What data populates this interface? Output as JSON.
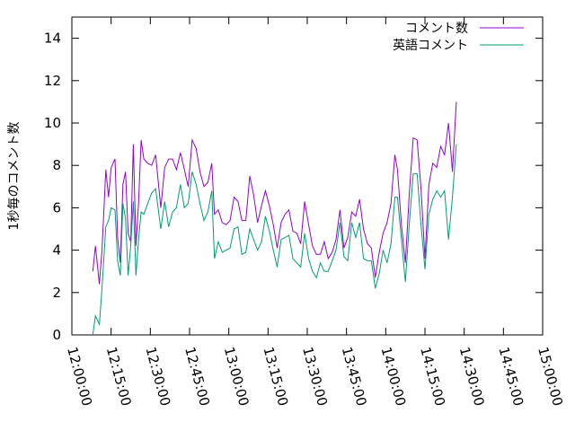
{
  "chart_data": {
    "type": "line",
    "title": "",
    "xlabel": "",
    "ylabel": "1秒毎のコメント数",
    "x_axis_type": "time",
    "xlim": [
      "12:00:00",
      "15:00:00"
    ],
    "ylim": [
      0,
      15
    ],
    "yticks": [
      0,
      2,
      4,
      6,
      8,
      10,
      12,
      14
    ],
    "xticks": [
      "12:00:00",
      "12:15:00",
      "12:30:00",
      "12:45:00",
      "13:00:00",
      "13:15:00",
      "13:30:00",
      "13:45:00",
      "14:00:00",
      "14:15:00",
      "14:30:00",
      "14:45:00",
      "15:00:00"
    ],
    "grid": false,
    "legend_position": "top-right",
    "series": [
      {
        "name": "コメント数",
        "color": "#9400d3",
        "points": [
          [
            "12:08:00",
            3.0
          ],
          [
            "12:09:00",
            4.2
          ],
          [
            "12:10:30",
            2.4
          ],
          [
            "12:11:30",
            4.0
          ],
          [
            "12:13:00",
            7.8
          ],
          [
            "12:14:00",
            6.5
          ],
          [
            "12:15:00",
            7.9
          ],
          [
            "12:16:30",
            8.3
          ],
          [
            "12:17:30",
            4.6
          ],
          [
            "12:18:30",
            3.4
          ],
          [
            "12:19:30",
            7.1
          ],
          [
            "12:20:30",
            7.7
          ],
          [
            "12:21:30",
            4.8
          ],
          [
            "12:22:30",
            4.4
          ],
          [
            "12:23:30",
            9.0
          ],
          [
            "12:24:30",
            4.2
          ],
          [
            "12:25:30",
            6.2
          ],
          [
            "12:26:30",
            9.2
          ],
          [
            "12:27:30",
            8.3
          ],
          [
            "12:29:00",
            8.1
          ],
          [
            "12:30:30",
            8.0
          ],
          [
            "12:32:00",
            8.5
          ],
          [
            "12:34:00",
            6.0
          ],
          [
            "12:35:30",
            7.9
          ],
          [
            "12:37:00",
            8.3
          ],
          [
            "12:38:30",
            8.3
          ],
          [
            "12:40:00",
            7.8
          ],
          [
            "12:41:30",
            8.6
          ],
          [
            "12:43:00",
            7.8
          ],
          [
            "12:44:30",
            7.0
          ],
          [
            "12:46:00",
            9.2
          ],
          [
            "12:47:30",
            8.8
          ],
          [
            "12:49:00",
            7.7
          ],
          [
            "12:50:30",
            7.0
          ],
          [
            "12:52:00",
            7.2
          ],
          [
            "12:53:30",
            8.1
          ],
          [
            "12:54:30",
            5.7
          ],
          [
            "12:56:00",
            5.9
          ],
          [
            "12:57:30",
            5.3
          ],
          [
            "12:59:00",
            5.2
          ],
          [
            "13:00:30",
            5.4
          ],
          [
            "13:02:00",
            6.5
          ],
          [
            "13:03:30",
            6.3
          ],
          [
            "13:05:00",
            5.4
          ],
          [
            "13:06:30",
            5.4
          ],
          [
            "13:08:00",
            7.5
          ],
          [
            "13:09:30",
            6.6
          ],
          [
            "13:11:00",
            5.3
          ],
          [
            "13:12:30",
            6.1
          ],
          [
            "13:14:00",
            6.8
          ],
          [
            "13:15:30",
            6.1
          ],
          [
            "13:17:00",
            5.2
          ],
          [
            "13:18:30",
            4.1
          ],
          [
            "13:20:00",
            5.3
          ],
          [
            "13:21:30",
            5.7
          ],
          [
            "13:23:00",
            5.9
          ],
          [
            "13:24:30",
            4.9
          ],
          [
            "13:26:00",
            4.8
          ],
          [
            "13:27:30",
            4.3
          ],
          [
            "13:29:00",
            6.3
          ],
          [
            "13:30:30",
            5.2
          ],
          [
            "13:32:00",
            4.2
          ],
          [
            "13:33:30",
            3.8
          ],
          [
            "13:35:00",
            3.8
          ],
          [
            "13:36:30",
            4.4
          ],
          [
            "13:38:00",
            3.6
          ],
          [
            "13:39:30",
            3.9
          ],
          [
            "13:41:00",
            4.5
          ],
          [
            "13:42:30",
            5.9
          ],
          [
            "13:44:00",
            4.1
          ],
          [
            "13:45:30",
            4.6
          ],
          [
            "13:47:00",
            5.8
          ],
          [
            "13:48:30",
            5.6
          ],
          [
            "13:50:00",
            6.4
          ],
          [
            "13:51:30",
            5.0
          ],
          [
            "13:53:00",
            4.3
          ],
          [
            "13:54:30",
            4.1
          ],
          [
            "13:56:00",
            2.7
          ],
          [
            "13:57:30",
            3.9
          ],
          [
            "13:59:00",
            4.8
          ],
          [
            "14:00:30",
            5.3
          ],
          [
            "14:02:00",
            6.2
          ],
          [
            "14:03:30",
            8.5
          ],
          [
            "14:04:30",
            7.8
          ],
          [
            "14:06:00",
            5.2
          ],
          [
            "14:07:30",
            3.4
          ],
          [
            "14:09:00",
            6.6
          ],
          [
            "14:10:30",
            9.3
          ],
          [
            "14:12:00",
            9.2
          ],
          [
            "14:13:30",
            6.9
          ],
          [
            "14:15:00",
            3.6
          ],
          [
            "14:16:30",
            7.1
          ],
          [
            "14:18:00",
            8.1
          ],
          [
            "14:19:30",
            7.9
          ],
          [
            "14:21:00",
            8.9
          ],
          [
            "14:22:30",
            8.5
          ],
          [
            "14:24:00",
            10.0
          ],
          [
            "14:25:30",
            7.7
          ],
          [
            "14:27:00",
            11.0
          ]
        ]
      },
      {
        "name": "英語コメント",
        "color": "#009e73",
        "points": [
          [
            "12:08:00",
            0.0
          ],
          [
            "12:09:00",
            0.9
          ],
          [
            "12:10:30",
            0.5
          ],
          [
            "12:11:30",
            2.2
          ],
          [
            "12:13:00",
            5.1
          ],
          [
            "12:14:00",
            5.4
          ],
          [
            "12:15:00",
            6.0
          ],
          [
            "12:16:30",
            5.9
          ],
          [
            "12:17:30",
            3.5
          ],
          [
            "12:18:30",
            2.8
          ],
          [
            "12:19:30",
            6.2
          ],
          [
            "12:20:30",
            5.5
          ],
          [
            "12:21:30",
            2.8
          ],
          [
            "12:22:30",
            4.2
          ],
          [
            "12:23:30",
            6.3
          ],
          [
            "12:24:30",
            2.8
          ],
          [
            "12:25:30",
            4.5
          ],
          [
            "12:26:30",
            5.8
          ],
          [
            "12:27:30",
            5.7
          ],
          [
            "12:29:00",
            6.2
          ],
          [
            "12:30:30",
            6.7
          ],
          [
            "12:32:00",
            6.9
          ],
          [
            "12:34:00",
            5.0
          ],
          [
            "12:35:30",
            6.3
          ],
          [
            "12:37:00",
            5.1
          ],
          [
            "12:38:30",
            5.8
          ],
          [
            "12:40:00",
            6.0
          ],
          [
            "12:41:30",
            7.1
          ],
          [
            "12:43:00",
            6.0
          ],
          [
            "12:44:30",
            6.2
          ],
          [
            "12:46:00",
            7.7
          ],
          [
            "12:47:30",
            7.1
          ],
          [
            "12:49:00",
            6.2
          ],
          [
            "12:50:30",
            5.4
          ],
          [
            "12:52:00",
            5.8
          ],
          [
            "12:53:30",
            6.8
          ],
          [
            "12:54:30",
            3.6
          ],
          [
            "12:56:00",
            4.4
          ],
          [
            "12:57:30",
            3.9
          ],
          [
            "12:59:00",
            4.0
          ],
          [
            "13:00:30",
            4.1
          ],
          [
            "13:02:00",
            5.0
          ],
          [
            "13:03:30",
            5.1
          ],
          [
            "13:05:00",
            3.8
          ],
          [
            "13:06:30",
            3.9
          ],
          [
            "13:08:00",
            5.0
          ],
          [
            "13:09:30",
            4.5
          ],
          [
            "13:11:00",
            4.0
          ],
          [
            "13:12:30",
            4.4
          ],
          [
            "13:14:00",
            5.6
          ],
          [
            "13:15:30",
            4.9
          ],
          [
            "13:17:00",
            4.0
          ],
          [
            "13:18:30",
            3.2
          ],
          [
            "13:20:00",
            4.5
          ],
          [
            "13:21:30",
            4.6
          ],
          [
            "13:23:00",
            4.7
          ],
          [
            "13:24:30",
            3.6
          ],
          [
            "13:26:00",
            3.4
          ],
          [
            "13:27:30",
            3.2
          ],
          [
            "13:29:00",
            4.8
          ],
          [
            "13:30:30",
            3.6
          ],
          [
            "13:32:00",
            3.0
          ],
          [
            "13:33:30",
            2.7
          ],
          [
            "13:35:00",
            3.4
          ],
          [
            "13:36:30",
            3.0
          ],
          [
            "13:38:00",
            3.0
          ],
          [
            "13:39:30",
            3.5
          ],
          [
            "13:41:00",
            4.0
          ],
          [
            "13:42:30",
            5.3
          ],
          [
            "13:44:00",
            3.7
          ],
          [
            "13:45:30",
            3.5
          ],
          [
            "13:47:00",
            5.3
          ],
          [
            "13:48:30",
            4.6
          ],
          [
            "13:50:00",
            5.3
          ],
          [
            "13:51:30",
            3.6
          ],
          [
            "13:53:00",
            3.5
          ],
          [
            "13:54:30",
            3.5
          ],
          [
            "13:56:00",
            2.2
          ],
          [
            "13:57:30",
            2.9
          ],
          [
            "13:59:00",
            4.0
          ],
          [
            "14:00:30",
            3.4
          ],
          [
            "14:02:00",
            4.3
          ],
          [
            "14:03:30",
            6.5
          ],
          [
            "14:04:30",
            6.5
          ],
          [
            "14:06:00",
            4.5
          ],
          [
            "14:07:30",
            2.5
          ],
          [
            "14:09:00",
            5.2
          ],
          [
            "14:10:30",
            7.6
          ],
          [
            "14:12:00",
            7.6
          ],
          [
            "14:13:30",
            5.2
          ],
          [
            "14:15:00",
            3.1
          ],
          [
            "14:16:30",
            5.7
          ],
          [
            "14:18:00",
            6.4
          ],
          [
            "14:19:30",
            6.8
          ],
          [
            "14:21:00",
            6.5
          ],
          [
            "14:22:30",
            6.8
          ],
          [
            "14:24:00",
            4.5
          ],
          [
            "14:25:30",
            6.5
          ],
          [
            "14:27:00",
            9.0
          ]
        ]
      }
    ]
  }
}
